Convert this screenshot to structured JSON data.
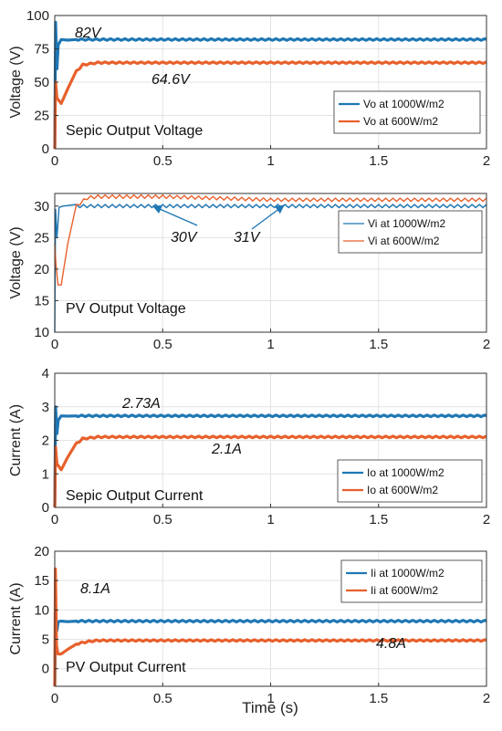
{
  "chart_data": [
    {
      "type": "line",
      "title": "Sepic Output Voltage",
      "ylabel": "Voltage (V)",
      "xlabel": "",
      "xlim": [
        0,
        2
      ],
      "ylim": [
        0,
        100
      ],
      "xticks": [
        "0",
        "0.5",
        "1",
        "1.5",
        "2"
      ],
      "yticks": [
        "0",
        "25",
        "50",
        "75",
        "100"
      ],
      "grid": true,
      "legend": "right",
      "series": [
        {
          "name": "Vo at 1000W/m2",
          "color": "#1f77b4",
          "width": "thick",
          "x": [
            0,
            0.004,
            0.01,
            0.016,
            0.03,
            0.06,
            0.1,
            0.5,
            1.0,
            1.5,
            2.0
          ],
          "y": [
            0,
            95,
            60,
            78,
            82,
            81.5,
            82,
            82,
            82,
            82,
            82
          ]
        },
        {
          "name": "Vo at 600W/m2",
          "color": "#e8602c",
          "width": "thick",
          "x": [
            0,
            0.004,
            0.01,
            0.03,
            0.06,
            0.1,
            0.13,
            0.2,
            0.5,
            1.0,
            1.5,
            2.0
          ],
          "y": [
            0,
            50,
            38,
            34,
            45,
            58,
            63,
            64.6,
            64.6,
            64.6,
            64.6,
            64.6
          ]
        }
      ],
      "annotations": [
        "82V",
        "64.6V"
      ]
    },
    {
      "type": "line",
      "title": "PV Output Voltage",
      "ylabel": "Voltage (V)",
      "xlabel": "",
      "xlim": [
        0,
        2
      ],
      "ylim": [
        10,
        32
      ],
      "xticks": [
        "0",
        "0.5",
        "1",
        "1.5",
        "2"
      ],
      "yticks": [
        "10",
        "15",
        "20",
        "25",
        "30"
      ],
      "grid": true,
      "legend": "right",
      "series": [
        {
          "name": "Vi at 1000W/m2",
          "color": "#1f77b4",
          "width": "thin",
          "x": [
            0,
            0.004,
            0.01,
            0.02,
            0.04,
            0.1,
            0.5,
            1.0,
            1.5,
            2.0
          ],
          "y": [
            10,
            29.5,
            25,
            29.8,
            30,
            30,
            30,
            30,
            30,
            30
          ]
        },
        {
          "name": "Vi at 600W/m2",
          "color": "#e8602c",
          "width": "thin",
          "x": [
            0,
            0.005,
            0.015,
            0.03,
            0.06,
            0.1,
            0.15,
            0.2,
            0.5,
            1.0,
            1.5,
            2.0
          ],
          "y": [
            24,
            21,
            17.5,
            17.5,
            24,
            30,
            31.3,
            31.5,
            31.5,
            31,
            31,
            31
          ]
        }
      ],
      "annotations": [
        "30V",
        "31V"
      ]
    },
    {
      "type": "line",
      "title": "Sepic Output Current",
      "ylabel": "Current (A)",
      "xlabel": "",
      "xlim": [
        0,
        2
      ],
      "ylim": [
        0,
        4
      ],
      "xticks": [
        "0",
        "0.5",
        "1",
        "1.5",
        "2"
      ],
      "yticks": [
        "0",
        "1",
        "2",
        "3",
        "4"
      ],
      "grid": true,
      "legend": "right",
      "series": [
        {
          "name": "Io at 1000W/m2",
          "color": "#1f77b4",
          "width": "thick",
          "x": [
            0,
            0.004,
            0.01,
            0.016,
            0.03,
            0.06,
            0.1,
            0.5,
            1.0,
            1.5,
            2.0
          ],
          "y": [
            0,
            3.0,
            2.2,
            2.6,
            2.73,
            2.72,
            2.73,
            2.73,
            2.73,
            2.73,
            2.73
          ]
        },
        {
          "name": "Io at 600W/m2",
          "color": "#e8602c",
          "width": "thick",
          "x": [
            0,
            0.004,
            0.01,
            0.03,
            0.06,
            0.1,
            0.13,
            0.2,
            0.5,
            1.0,
            1.5,
            2.0
          ],
          "y": [
            0,
            1.8,
            1.3,
            1.12,
            1.5,
            1.9,
            2.05,
            2.1,
            2.1,
            2.1,
            2.1,
            2.1
          ]
        }
      ],
      "annotations": [
        "2.73A",
        "2.1A"
      ]
    },
    {
      "type": "line",
      "title": "PV Output Current",
      "ylabel": "Current (A)",
      "xlabel": "Time (s)",
      "xlim": [
        0,
        2
      ],
      "ylim": [
        -3,
        20
      ],
      "xticks": [
        "0",
        "0.5",
        "1",
        "1.5",
        "2"
      ],
      "yticks": [
        "0",
        "5",
        "10",
        "15",
        "20"
      ],
      "grid": true,
      "legend": "top-right",
      "series": [
        {
          "name": "Ii at 1000W/m2",
          "color": "#1f77b4",
          "width": "thick",
          "x": [
            0,
            0.004,
            0.01,
            0.016,
            0.03,
            0.06,
            0.1,
            0.5,
            1.0,
            1.5,
            2.0
          ],
          "y": [
            -3,
            9,
            6.5,
            8,
            8.1,
            8.0,
            8.1,
            8.1,
            8.1,
            8.1,
            8.1
          ]
        },
        {
          "name": "Ii at 600W/m2",
          "color": "#e8602c",
          "width": "thick",
          "x": [
            0,
            0.003,
            0.008,
            0.015,
            0.03,
            0.06,
            0.1,
            0.15,
            0.2,
            0.5,
            1.0,
            1.5,
            2.0
          ],
          "y": [
            -3,
            17,
            4,
            2.5,
            2.5,
            3.3,
            4.2,
            4.6,
            4.8,
            4.8,
            4.8,
            4.8,
            4.8
          ]
        }
      ],
      "annotations": [
        "8.1A",
        "4.8A"
      ]
    }
  ]
}
